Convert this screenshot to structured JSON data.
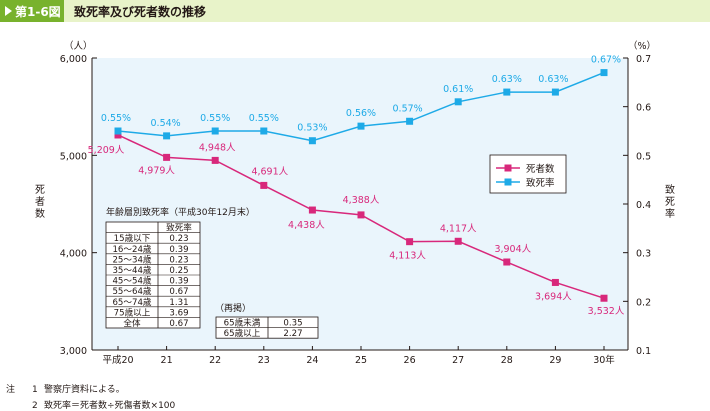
{
  "figure": {
    "number": "第1-6図",
    "title": "致死率及び死者数の推移"
  },
  "chart_data": {
    "type": "line",
    "categories": [
      "平成20",
      "21",
      "22",
      "23",
      "24",
      "25",
      "26",
      "27",
      "28",
      "29",
      "30年"
    ],
    "left_axis": {
      "unit": "（人）",
      "label": "死者数",
      "range": [
        3000,
        6000
      ],
      "ticks": [
        "3,000",
        "4,000",
        "5,000",
        "6,000"
      ]
    },
    "right_axis": {
      "unit": "（%）",
      "label": "致死率",
      "range": [
        0.1,
        0.7
      ],
      "ticks": [
        "0.1",
        "0.2",
        "0.3",
        "0.4",
        "0.5",
        "0.6",
        "0.7"
      ]
    },
    "series": [
      {
        "name": "死者数",
        "axis": "left",
        "color": "#d8287b",
        "marker": "square",
        "values": [
          5209,
          4979,
          4948,
          4691,
          4438,
          4388,
          4113,
          4117,
          3904,
          3694,
          3532
        ],
        "labels": [
          "5,209人",
          "4,979人",
          "4,948人",
          "4,691人",
          "4,438人",
          "4,388人",
          "4,113人",
          "4,117人",
          "3,904人",
          "3,694人",
          "3,532人"
        ]
      },
      {
        "name": "致死率",
        "axis": "right",
        "color": "#1eaae7",
        "marker": "square",
        "values": [
          0.55,
          0.54,
          0.55,
          0.55,
          0.53,
          0.56,
          0.57,
          0.61,
          0.63,
          0.63,
          0.67
        ],
        "labels": [
          "0.55%",
          "0.54%",
          "0.55%",
          "0.55%",
          "0.53%",
          "0.56%",
          "0.57%",
          "0.61%",
          "0.63%",
          "0.63%",
          "0.67%"
        ]
      }
    ],
    "legend_position": "right",
    "grid": false
  },
  "age_table": {
    "title": "年齢層別致死率（平成30年12月末）",
    "header": [
      "",
      "致死率"
    ],
    "rows": [
      [
        "15歳以下",
        "0.23"
      ],
      [
        "16～24歳",
        "0.39"
      ],
      [
        "25～34歳",
        "0.23"
      ],
      [
        "35～44歳",
        "0.25"
      ],
      [
        "45～54歳",
        "0.39"
      ],
      [
        "55～64歳",
        "0.67"
      ],
      [
        "65～74歳",
        "1.31"
      ],
      [
        "75歳以上",
        "3.69"
      ],
      [
        "全体",
        "0.67"
      ]
    ]
  },
  "repost_table": {
    "title": "（再掲）",
    "rows": [
      [
        "65歳未満",
        "0.35"
      ],
      [
        "65歳以上",
        "2.27"
      ]
    ]
  },
  "notes": {
    "prefix": "注",
    "items": [
      {
        "num": "1",
        "text": "警察庁資料による。"
      },
      {
        "num": "2",
        "text": "致死率＝死者数÷死傷者数×100"
      }
    ]
  }
}
